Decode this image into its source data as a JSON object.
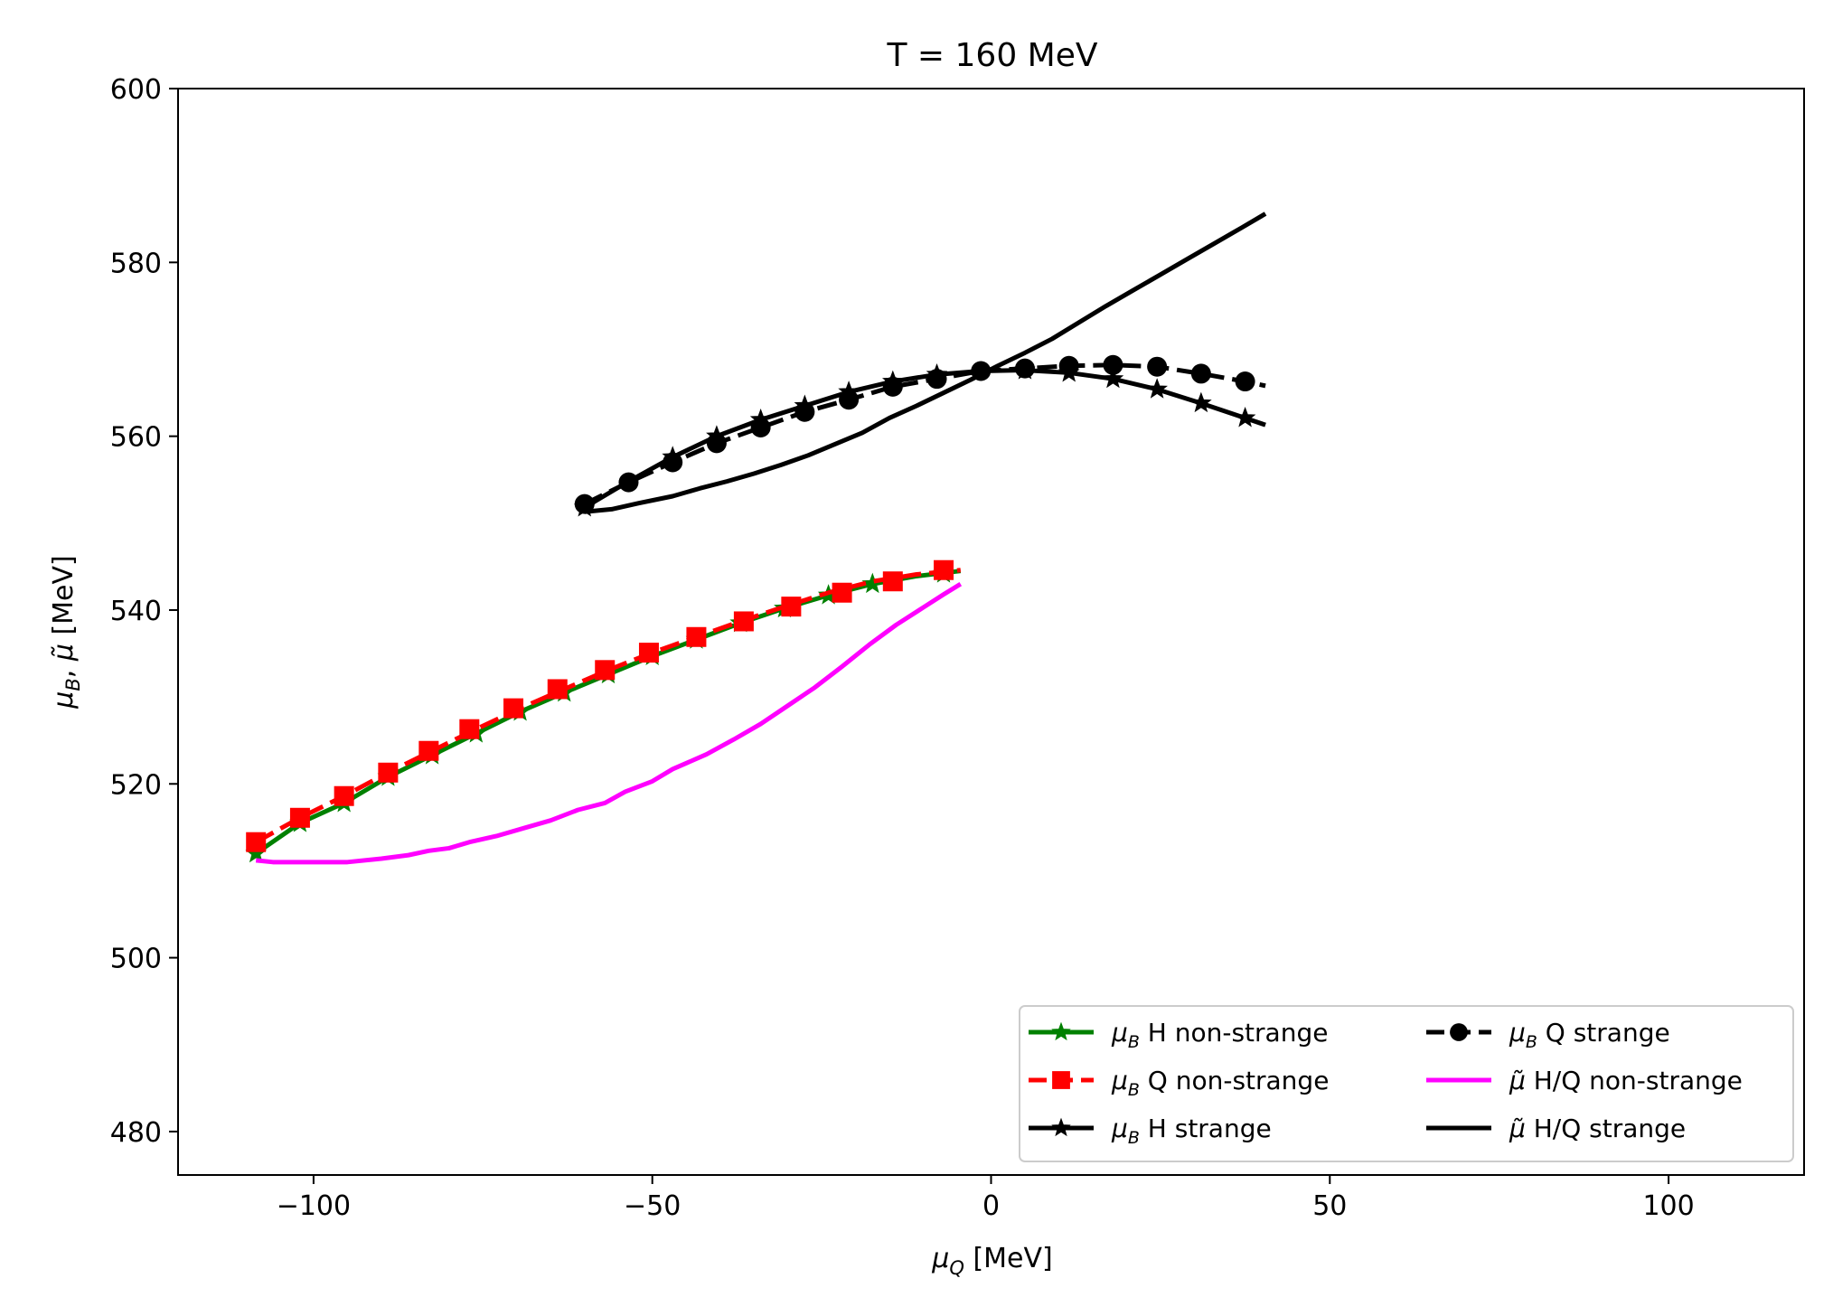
{
  "chart_data": {
    "type": "line",
    "title": "T = 160 MeV",
    "xlabel": "μ_Q [MeV]",
    "ylabel": "μ_B,  μ̃ [MeV]",
    "xlim": [
      -120,
      120
    ],
    "ylim": [
      475,
      600
    ],
    "xticks": [
      -100,
      -50,
      0,
      50,
      100
    ],
    "yticks": [
      480,
      500,
      520,
      540,
      560,
      580,
      600
    ],
    "xtick_labels": [
      "−100",
      "−50",
      "0",
      "50",
      "100"
    ],
    "ytick_labels": [
      "480",
      "500",
      "520",
      "540",
      "560",
      "580",
      "600"
    ],
    "grid": false,
    "legend_position": "lower-right",
    "series": [
      {
        "name": "μ_B H non-strange",
        "color": "#008000",
        "dash": "solid",
        "marker": "star",
        "points": [
          [
            -108.5,
            512.0
          ],
          [
            -102,
            515.5
          ],
          [
            -95.5,
            517.8
          ],
          [
            -89,
            520.8
          ],
          [
            -82.5,
            523.3
          ],
          [
            -76,
            525.8
          ],
          [
            -69.5,
            528.3
          ],
          [
            -63,
            530.5
          ],
          [
            -56.5,
            532.6
          ],
          [
            -50,
            534.7
          ],
          [
            -43.5,
            536.6
          ],
          [
            -37,
            538.5
          ],
          [
            -30.5,
            540.2
          ],
          [
            -24,
            541.7
          ],
          [
            -17.5,
            543.0
          ],
          [
            -11,
            543.9
          ],
          [
            -4.5,
            544.5
          ]
        ],
        "marker_points": [
          [
            -108.5,
            512.0
          ],
          [
            -102,
            515.5
          ],
          [
            -95.5,
            517.8
          ],
          [
            -89,
            520.8
          ],
          [
            -82.5,
            523.3
          ],
          [
            -76,
            525.8
          ],
          [
            -69.5,
            528.3
          ],
          [
            -63,
            530.5
          ],
          [
            -56.5,
            532.6
          ],
          [
            -50,
            534.7
          ],
          [
            -43.5,
            536.6
          ],
          [
            -37,
            538.5
          ],
          [
            -30.5,
            540.2
          ],
          [
            -24,
            541.7
          ],
          [
            -17.5,
            543.0
          ],
          [
            -7,
            544.2
          ]
        ]
      },
      {
        "name": "μ_B Q non-strange",
        "color": "#ff0000",
        "dash": "dashed",
        "marker": "square",
        "points": [
          [
            -108.5,
            513.3
          ],
          [
            -102,
            516.1
          ],
          [
            -95.5,
            518.6
          ],
          [
            -89,
            521.3
          ],
          [
            -82.5,
            523.8
          ],
          [
            -76,
            526.3
          ],
          [
            -69.5,
            528.7
          ],
          [
            -63,
            530.9
          ],
          [
            -56.5,
            533.1
          ],
          [
            -50,
            535.1
          ],
          [
            -43.5,
            536.9
          ],
          [
            -37,
            538.7
          ],
          [
            -30.5,
            540.4
          ],
          [
            -24,
            542.0
          ],
          [
            -17.5,
            543.3
          ],
          [
            -11,
            544.1
          ],
          [
            -4.5,
            544.6
          ]
        ],
        "marker_points": [
          [
            -108.5,
            513.3
          ],
          [
            -102,
            516.1
          ],
          [
            -95.5,
            518.6
          ],
          [
            -89,
            521.3
          ],
          [
            -83,
            523.8
          ],
          [
            -77,
            526.3
          ],
          [
            -70.5,
            528.7
          ],
          [
            -64,
            530.9
          ],
          [
            -57,
            533.1
          ],
          [
            -50.5,
            535.1
          ],
          [
            -43.5,
            536.9
          ],
          [
            -36.5,
            538.7
          ],
          [
            -29.5,
            540.4
          ],
          [
            -22,
            542.0
          ],
          [
            -14.5,
            543.3
          ],
          [
            -7,
            544.6
          ]
        ]
      },
      {
        "name": "μ_B H strange",
        "color": "#000000",
        "dash": "solid",
        "marker": "star",
        "points": [
          [
            -60,
            551.8
          ],
          [
            -53.5,
            554.8
          ],
          [
            -47,
            557.6
          ],
          [
            -40.5,
            560.0
          ],
          [
            -34,
            561.9
          ],
          [
            -27.5,
            563.5
          ],
          [
            -21,
            565.1
          ],
          [
            -14.5,
            566.3
          ],
          [
            -8,
            567.1
          ],
          [
            -1.5,
            567.5
          ],
          [
            5,
            567.6
          ],
          [
            11.5,
            567.3
          ],
          [
            18,
            566.6
          ],
          [
            24.5,
            565.4
          ],
          [
            31,
            563.8
          ],
          [
            37.5,
            562.1
          ],
          [
            40.5,
            561.3
          ]
        ],
        "marker_points": [
          [
            -60,
            551.8
          ],
          [
            -47,
            557.6
          ],
          [
            -40.5,
            560.0
          ],
          [
            -34,
            561.9
          ],
          [
            -27.5,
            563.5
          ],
          [
            -21,
            565.1
          ],
          [
            -14.5,
            566.3
          ],
          [
            -8,
            567.1
          ],
          [
            5,
            567.6
          ],
          [
            11.5,
            567.3
          ],
          [
            18,
            566.6
          ],
          [
            24.5,
            565.4
          ],
          [
            31,
            563.8
          ],
          [
            37.5,
            562.1
          ]
        ]
      },
      {
        "name": "μ_B Q strange",
        "color": "#000000",
        "dash": "dashed",
        "marker": "circle",
        "points": [
          [
            -60,
            552.2
          ],
          [
            -53.5,
            554.7
          ],
          [
            -47,
            557.0
          ],
          [
            -40.5,
            559.2
          ],
          [
            -34,
            561.0
          ],
          [
            -27.5,
            562.8
          ],
          [
            -21,
            564.2
          ],
          [
            -14.5,
            565.7
          ],
          [
            -8,
            566.6
          ],
          [
            -1.5,
            567.5
          ],
          [
            5,
            567.8
          ],
          [
            11.5,
            568.1
          ],
          [
            18,
            568.2
          ],
          [
            24.5,
            568.0
          ],
          [
            31,
            567.2
          ],
          [
            37.5,
            566.3
          ],
          [
            40.5,
            565.8
          ]
        ],
        "marker_points": [
          [
            -60,
            552.2
          ],
          [
            -53.5,
            554.7
          ],
          [
            -47,
            557.0
          ],
          [
            -40.5,
            559.2
          ],
          [
            -34,
            561.0
          ],
          [
            -27.5,
            562.8
          ],
          [
            -21,
            564.2
          ],
          [
            -14.5,
            565.7
          ],
          [
            -8,
            566.6
          ],
          [
            -1.5,
            567.5
          ],
          [
            5,
            567.8
          ],
          [
            11.5,
            568.1
          ],
          [
            18,
            568.2
          ],
          [
            24.5,
            568.0
          ],
          [
            31,
            567.2
          ],
          [
            37.5,
            566.3
          ]
        ]
      },
      {
        "name": "μ̃ H/Q non-strange",
        "color": "#ff00ff",
        "dash": "solid",
        "marker": "none",
        "points": [
          [
            -108.5,
            511.2
          ],
          [
            -106,
            511.0
          ],
          [
            -100,
            511.0
          ],
          [
            -95,
            511.0
          ],
          [
            -90,
            511.4
          ],
          [
            -86,
            511.8
          ],
          [
            -83,
            512.3
          ],
          [
            -80,
            512.6
          ],
          [
            -77,
            513.3
          ],
          [
            -73,
            514.0
          ],
          [
            -69,
            514.9
          ],
          [
            -65,
            515.8
          ],
          [
            -61,
            517.0
          ],
          [
            -57,
            517.8
          ],
          [
            -54,
            519.1
          ],
          [
            -50,
            520.3
          ],
          [
            -47,
            521.7
          ],
          [
            -42,
            523.4
          ],
          [
            -38,
            525.1
          ],
          [
            -34,
            526.9
          ],
          [
            -30,
            529.0
          ],
          [
            -26,
            531.1
          ],
          [
            -22,
            533.5
          ],
          [
            -18,
            536.0
          ],
          [
            -14,
            538.3
          ],
          [
            -10,
            540.3
          ],
          [
            -7,
            541.8
          ],
          [
            -4.5,
            543.0
          ]
        ]
      },
      {
        "name": "μ̃ H/Q strange",
        "color": "#000000",
        "dash": "solid",
        "marker": "none",
        "points": [
          [
            -60,
            551.3
          ],
          [
            -56,
            551.6
          ],
          [
            -52,
            552.3
          ],
          [
            -47,
            553.1
          ],
          [
            -43,
            554.0
          ],
          [
            -39,
            554.8
          ],
          [
            -35,
            555.7
          ],
          [
            -31,
            556.7
          ],
          [
            -27,
            557.8
          ],
          [
            -23,
            559.1
          ],
          [
            -19,
            560.4
          ],
          [
            -15,
            562.1
          ],
          [
            -11,
            563.5
          ],
          [
            -7,
            565.0
          ],
          [
            -3,
            566.5
          ],
          [
            1,
            568.1
          ],
          [
            5,
            569.6
          ],
          [
            9,
            571.2
          ],
          [
            13,
            573.1
          ],
          [
            17,
            575.0
          ],
          [
            21,
            576.8
          ],
          [
            25,
            578.6
          ],
          [
            29,
            580.4
          ],
          [
            33,
            582.2
          ],
          [
            37,
            584.0
          ],
          [
            40.5,
            585.6
          ]
        ]
      }
    ]
  }
}
